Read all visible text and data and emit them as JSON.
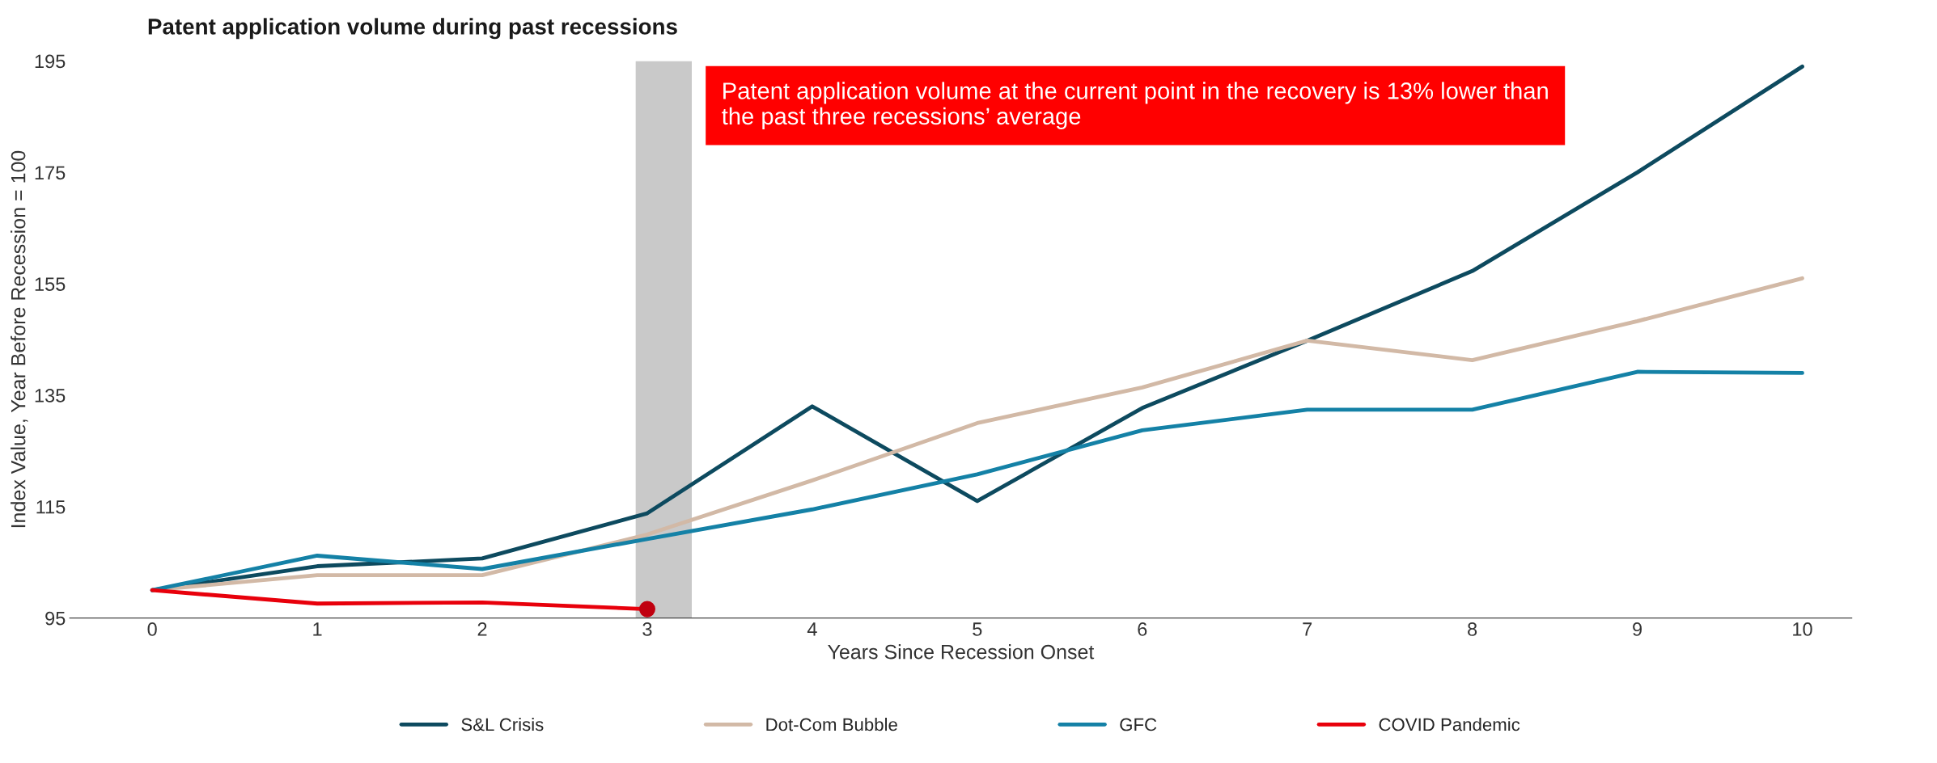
{
  "chart_data": {
    "type": "line",
    "title": "Patent application volume during past recessions",
    "xlabel": "Years Since Recession Onset",
    "ylabel": "Index Value, Year Before Recession = 100",
    "x": [
      0,
      1,
      2,
      3,
      4,
      5,
      6,
      7,
      8,
      9,
      10
    ],
    "series": [
      {
        "name": "S&L Crisis",
        "color": "#0d4a5f",
        "values": [
          100,
          104.3,
          105.7,
          113.8,
          133,
          116,
          132.7,
          144.8,
          157.3,
          175,
          194
        ]
      },
      {
        "name": "Dot-Com Bubble",
        "color": "#d2b9a6",
        "values": [
          100,
          102.7,
          102.7,
          110,
          119.7,
          130,
          136.4,
          144.8,
          141.3,
          148.3,
          156
        ]
      },
      {
        "name": "GFC",
        "color": "#1481a6",
        "values": [
          100,
          106.2,
          103.8,
          109.2,
          114.5,
          120.8,
          128.7,
          132.4,
          132.4,
          139.2,
          139
        ]
      },
      {
        "name": "COVID Pandemic",
        "color": "#e8000b",
        "x": [
          0,
          1,
          2,
          3
        ],
        "values": [
          100,
          97.6,
          97.8,
          96.6
        ]
      },
      {
        "type": "scatter",
        "color": "#c00010",
        "x": [
          3
        ],
        "values": [
          96.6
        ],
        "marker": "circle"
      }
    ],
    "xlim": [
      -0.5,
      10.3
    ],
    "ylim": [
      95,
      195
    ],
    "xticks": [
      0,
      1,
      2,
      3,
      4,
      5,
      6,
      7,
      8,
      9,
      10
    ],
    "yticks": [
      95,
      115,
      135,
      155,
      175,
      195
    ],
    "bands": [
      {
        "axis": "x",
        "from": 2.93,
        "to": 3.27,
        "color": "#c9c9c9"
      }
    ],
    "annotations": [
      "Patent application volume at the current point in the recovery is 13% lower than the past three recessions’ average"
    ],
    "grid": false,
    "legend": "bottom",
    "line_style": "solid"
  }
}
